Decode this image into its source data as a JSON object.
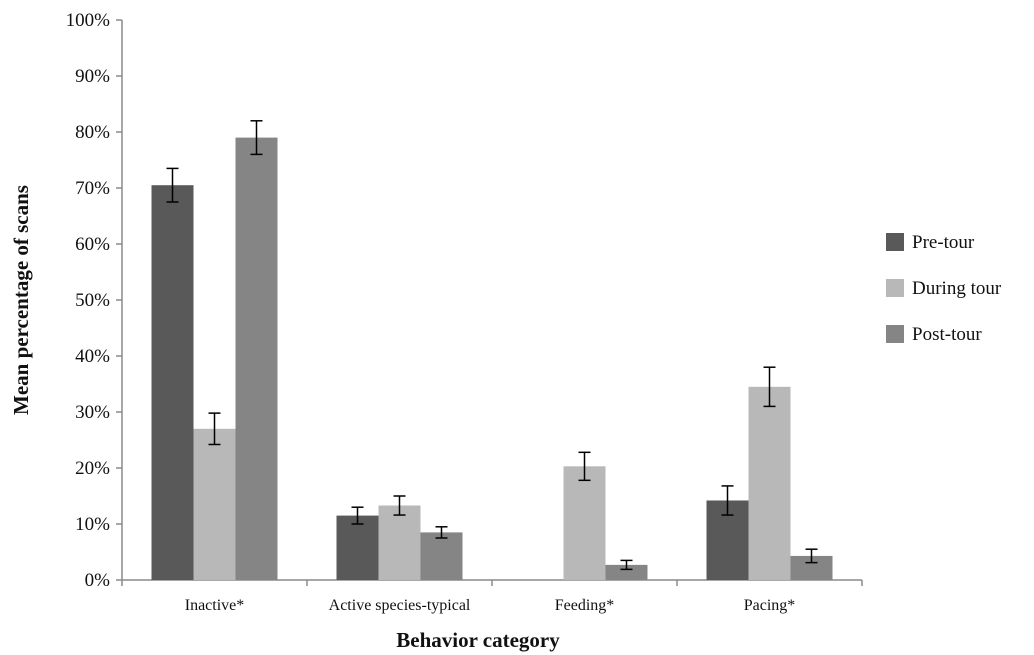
{
  "chart_data": {
    "type": "bar",
    "title": "",
    "xlabel": "Behavior category",
    "ylabel": "Mean percentage of scans",
    "ylim": [
      0,
      100
    ],
    "yticks": [
      "0%",
      "10%",
      "20%",
      "30%",
      "40%",
      "50%",
      "60%",
      "70%",
      "80%",
      "90%",
      "100%"
    ],
    "ytick_values": [
      0,
      10,
      20,
      30,
      40,
      50,
      60,
      70,
      80,
      90,
      100
    ],
    "categories": [
      "Inactive*",
      "Active species-typical",
      "Feeding*",
      "Pacing*"
    ],
    "series": [
      {
        "name": "Pre-tour",
        "color": "#595959",
        "values": [
          70.5,
          11.5,
          0,
          14.2
        ],
        "errors": [
          3.0,
          1.5,
          0,
          2.6
        ]
      },
      {
        "name": "During tour",
        "color": "#b8b8b8",
        "values": [
          27.0,
          13.3,
          20.3,
          34.5
        ],
        "errors": [
          2.8,
          1.7,
          2.5,
          3.5
        ]
      },
      {
        "name": "Post-tour",
        "color": "#858585",
        "values": [
          79.0,
          8.5,
          2.7,
          4.3
        ],
        "errors": [
          3.0,
          1.0,
          0.8,
          1.2
        ]
      }
    ],
    "grid": false,
    "legend_position": "right"
  }
}
